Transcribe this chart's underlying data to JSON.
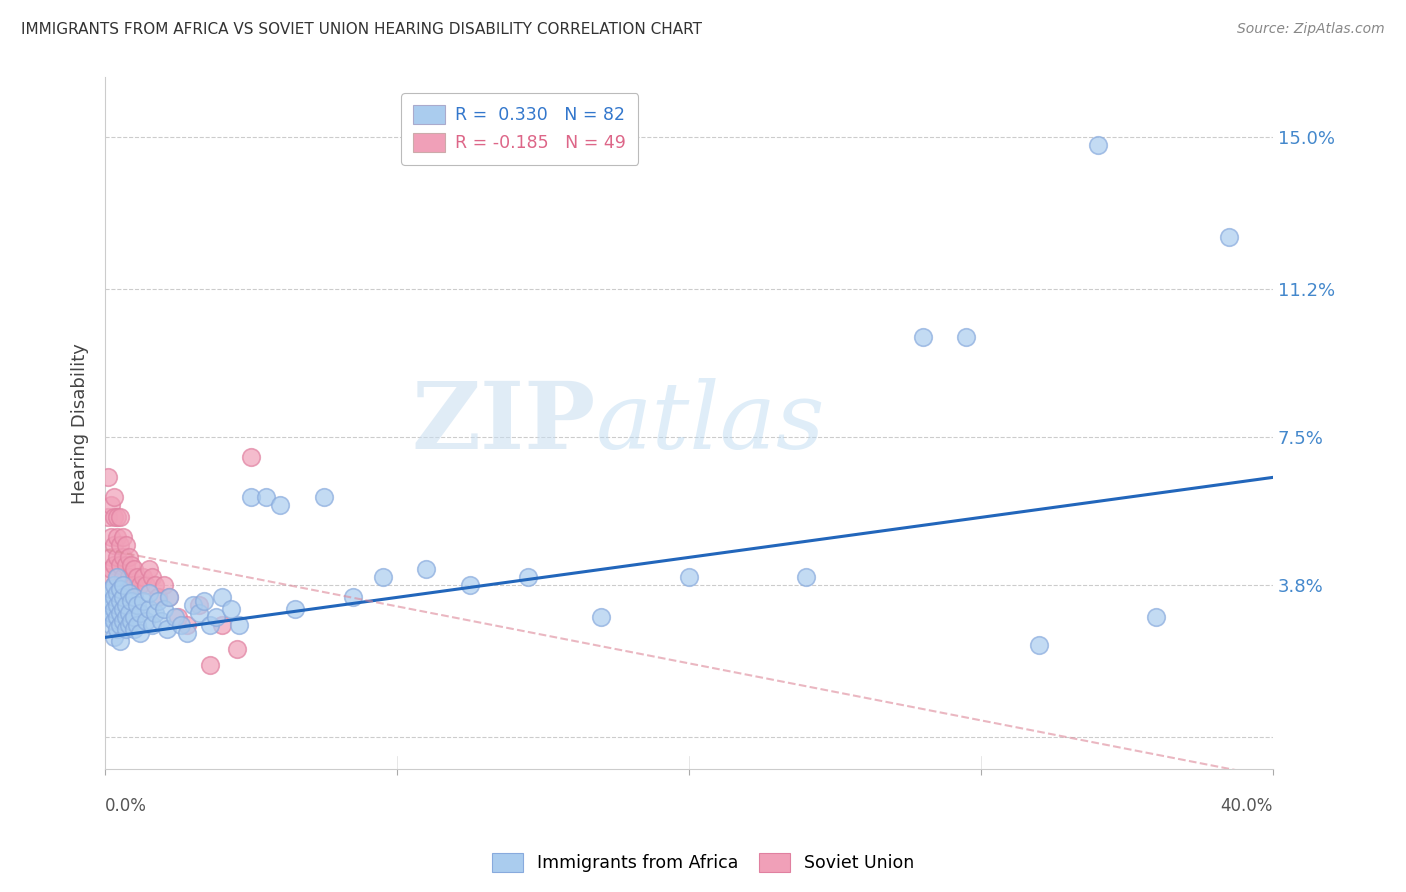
{
  "title": "IMMIGRANTS FROM AFRICA VS SOVIET UNION HEARING DISABILITY CORRELATION CHART",
  "source": "Source: ZipAtlas.com",
  "ylabel": "Hearing Disability",
  "yticks": [
    0.0,
    0.038,
    0.075,
    0.112,
    0.15
  ],
  "ytick_labels": [
    "",
    "3.8%",
    "7.5%",
    "11.2%",
    "15.0%"
  ],
  "xlim": [
    0.0,
    0.4
  ],
  "ylim": [
    -0.008,
    0.165
  ],
  "legend_r1": "R =  0.330   N = 82",
  "legend_r2": "R = -0.185   N = 49",
  "africa_color": "#aaccee",
  "soviet_color": "#f0a0b8",
  "africa_edge_color": "#88aadd",
  "soviet_edge_color": "#e080a0",
  "africa_line_color": "#2266bb",
  "soviet_line_color": "#dd8899",
  "watermark_zip": "ZIP",
  "watermark_atlas": "atlas",
  "africa_x": [
    0.001,
    0.001,
    0.001,
    0.002,
    0.002,
    0.002,
    0.002,
    0.003,
    0.003,
    0.003,
    0.003,
    0.003,
    0.004,
    0.004,
    0.004,
    0.004,
    0.004,
    0.005,
    0.005,
    0.005,
    0.005,
    0.005,
    0.006,
    0.006,
    0.006,
    0.006,
    0.007,
    0.007,
    0.007,
    0.008,
    0.008,
    0.008,
    0.009,
    0.009,
    0.01,
    0.01,
    0.01,
    0.011,
    0.011,
    0.012,
    0.012,
    0.013,
    0.014,
    0.015,
    0.015,
    0.016,
    0.017,
    0.018,
    0.019,
    0.02,
    0.021,
    0.022,
    0.024,
    0.026,
    0.028,
    0.03,
    0.032,
    0.034,
    0.036,
    0.038,
    0.04,
    0.043,
    0.046,
    0.05,
    0.055,
    0.06,
    0.065,
    0.075,
    0.085,
    0.095,
    0.11,
    0.125,
    0.145,
    0.17,
    0.2,
    0.24,
    0.28,
    0.32,
    0.36,
    0.385,
    0.295,
    0.34
  ],
  "africa_y": [
    0.03,
    0.033,
    0.036,
    0.028,
    0.031,
    0.034,
    0.037,
    0.029,
    0.032,
    0.035,
    0.038,
    0.025,
    0.03,
    0.033,
    0.036,
    0.027,
    0.04,
    0.028,
    0.031,
    0.034,
    0.037,
    0.024,
    0.029,
    0.032,
    0.035,
    0.038,
    0.027,
    0.03,
    0.033,
    0.028,
    0.031,
    0.036,
    0.029,
    0.034,
    0.027,
    0.03,
    0.035,
    0.028,
    0.033,
    0.026,
    0.031,
    0.034,
    0.029,
    0.032,
    0.036,
    0.028,
    0.031,
    0.034,
    0.029,
    0.032,
    0.027,
    0.035,
    0.03,
    0.028,
    0.026,
    0.033,
    0.031,
    0.034,
    0.028,
    0.03,
    0.035,
    0.032,
    0.028,
    0.06,
    0.06,
    0.058,
    0.032,
    0.06,
    0.035,
    0.04,
    0.042,
    0.038,
    0.04,
    0.03,
    0.04,
    0.04,
    0.1,
    0.023,
    0.03,
    0.125,
    0.1,
    0.148
  ],
  "soviet_x": [
    0.001,
    0.001,
    0.001,
    0.002,
    0.002,
    0.002,
    0.002,
    0.003,
    0.003,
    0.003,
    0.003,
    0.003,
    0.004,
    0.004,
    0.004,
    0.004,
    0.005,
    0.005,
    0.005,
    0.005,
    0.006,
    0.006,
    0.006,
    0.007,
    0.007,
    0.007,
    0.008,
    0.008,
    0.009,
    0.009,
    0.01,
    0.01,
    0.011,
    0.012,
    0.013,
    0.014,
    0.015,
    0.016,
    0.017,
    0.018,
    0.02,
    0.022,
    0.025,
    0.028,
    0.032,
    0.036,
    0.04,
    0.045,
    0.05
  ],
  "soviet_y": [
    0.065,
    0.055,
    0.04,
    0.058,
    0.05,
    0.045,
    0.042,
    0.06,
    0.055,
    0.048,
    0.043,
    0.038,
    0.055,
    0.05,
    0.045,
    0.04,
    0.055,
    0.048,
    0.043,
    0.038,
    0.05,
    0.045,
    0.04,
    0.048,
    0.043,
    0.038,
    0.045,
    0.04,
    0.043,
    0.038,
    0.042,
    0.038,
    0.04,
    0.038,
    0.04,
    0.038,
    0.042,
    0.04,
    0.038,
    0.035,
    0.038,
    0.035,
    0.03,
    0.028,
    0.033,
    0.018,
    0.028,
    0.022,
    0.07
  ],
  "africa_line_x": [
    0.0,
    0.4
  ],
  "africa_line_y": [
    0.025,
    0.065
  ],
  "soviet_line_x": [
    0.0,
    0.4
  ],
  "soviet_line_y": [
    0.047,
    -0.01
  ]
}
